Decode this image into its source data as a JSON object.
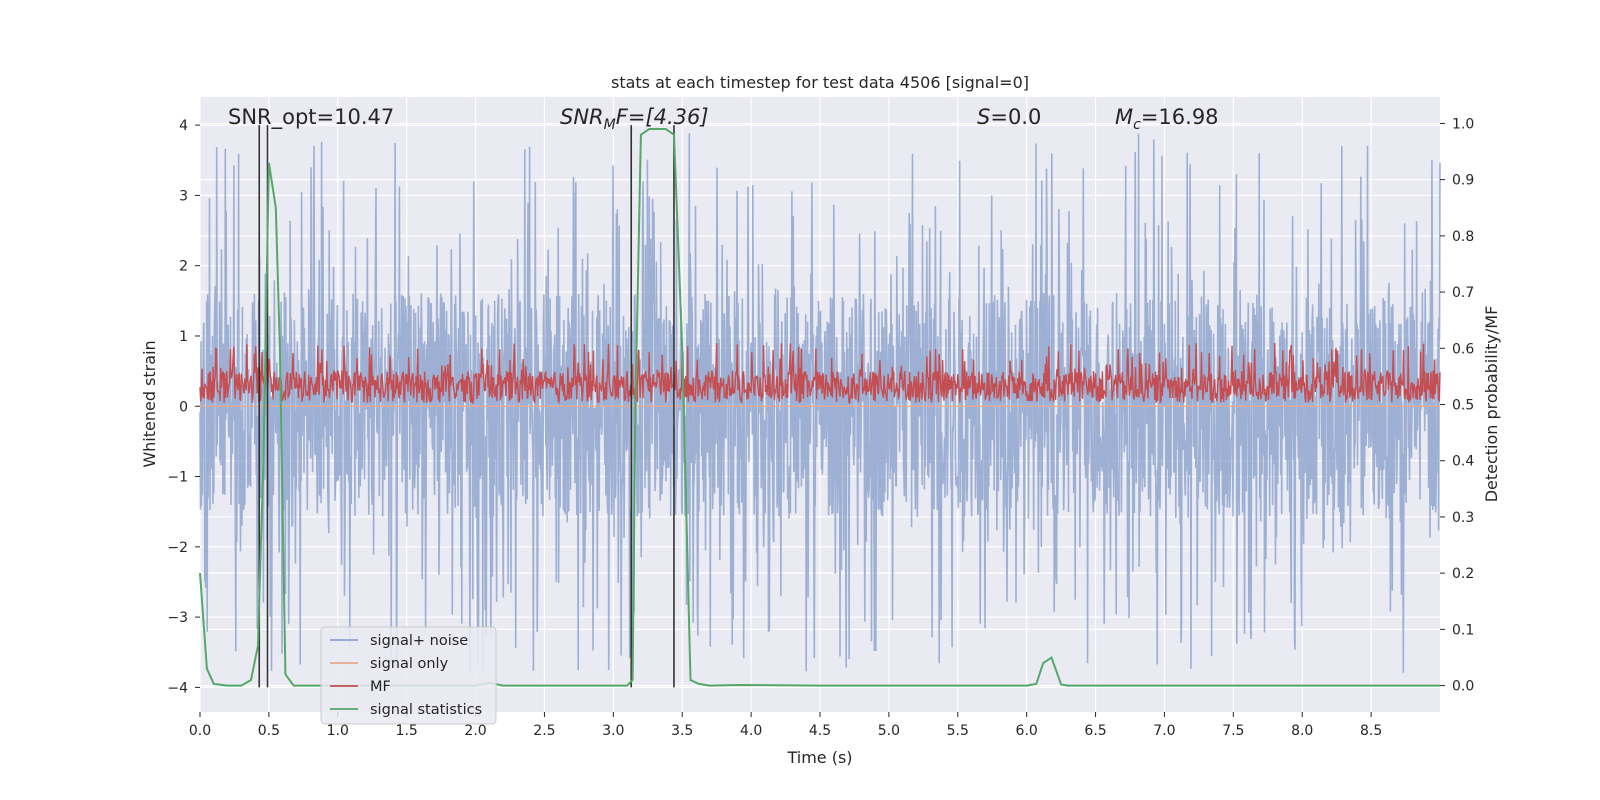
{
  "chart_data": {
    "type": "line",
    "title": "stats at each timestep for test data 4506 [signal=0]",
    "xlabel": "Time (s)",
    "ylabel": "Whitened strain",
    "ylabel_right": "Detection probability/MF",
    "xlim": [
      0.0,
      9.0
    ],
    "ylim": [
      -4.35,
      4.4
    ],
    "ylim_right": [
      -0.047,
      1.047
    ],
    "xticks": [
      "0.0",
      "0.5",
      "1.0",
      "1.5",
      "2.0",
      "2.5",
      "3.0",
      "3.5",
      "4.0",
      "4.5",
      "5.0",
      "5.5",
      "6.0",
      "6.5",
      "7.0",
      "7.5",
      "8.0",
      "8.5"
    ],
    "xtick_values": [
      0.0,
      0.5,
      1.0,
      1.5,
      2.0,
      2.5,
      3.0,
      3.5,
      4.0,
      4.5,
      5.0,
      5.5,
      6.0,
      6.5,
      7.0,
      7.5,
      8.0,
      8.5
    ],
    "yticks": [
      "−4",
      "−3",
      "−2",
      "−1",
      "0",
      "1",
      "2",
      "3",
      "4"
    ],
    "ytick_values": [
      -4,
      -3,
      -2,
      -1,
      0,
      1,
      2,
      3,
      4
    ],
    "yticks_right": [
      "0.0",
      "0.1",
      "0.2",
      "0.3",
      "0.4",
      "0.5",
      "0.6",
      "0.7",
      "0.8",
      "0.9",
      "1.0"
    ],
    "ytick_values_right": [
      0.0,
      0.1,
      0.2,
      0.3,
      0.4,
      0.5,
      0.6,
      0.7,
      0.8,
      0.9,
      1.0
    ],
    "grid": true,
    "legend_position": "lower-left",
    "annotations": {
      "snr_opt": "SNR_opt=10.47",
      "snr_mf_main": "SNR",
      "snr_mf_sub": "M",
      "snr_mf_tail": "F=[4.36]",
      "s_main": "S",
      "s_tail": "=0.0",
      "mc_main": "M",
      "mc_sub": "c",
      "mc_tail": "=16.98"
    },
    "series": [
      {
        "name": "signal+ noise",
        "color": "#8fa6cf",
        "kind": "noise",
        "amplitude_band": [
          -1.6,
          1.6
        ],
        "peak_range": [
          -3.8,
          3.9
        ]
      },
      {
        "name": "signal only",
        "color": "#e8a98f",
        "kind": "flat",
        "values": [
          0.0
        ]
      },
      {
        "name": "MF",
        "color": "#c44e52",
        "kind": "mf",
        "amplitude_range": [
          0.05,
          0.9
        ]
      },
      {
        "name": "signal statistics",
        "color": "#55a868",
        "axis": "right",
        "x": [
          0.0,
          0.05,
          0.1,
          0.2,
          0.3,
          0.37,
          0.42,
          0.46,
          0.5,
          0.55,
          0.58,
          0.62,
          0.68,
          0.8,
          1.0,
          1.5,
          2.0,
          2.1,
          2.2,
          2.5,
          3.0,
          3.1,
          3.14,
          3.16,
          3.2,
          3.26,
          3.32,
          3.38,
          3.44,
          3.5,
          3.56,
          3.62,
          3.7,
          3.9,
          4.5,
          5.0,
          5.5,
          6.0,
          6.07,
          6.12,
          6.18,
          6.25,
          6.3,
          7.0,
          8.0,
          8.5,
          9.0
        ],
        "values": [
          0.2,
          0.03,
          0.003,
          0.0,
          0.0,
          0.01,
          0.07,
          0.4,
          0.93,
          0.85,
          0.6,
          0.02,
          0.0,
          0.0,
          0.0,
          0.0,
          0.0,
          0.005,
          0.0,
          0.0,
          0.0,
          0.0,
          0.01,
          0.5,
          0.98,
          0.99,
          0.99,
          0.99,
          0.98,
          0.6,
          0.01,
          0.003,
          0.0,
          0.001,
          0.0,
          0.0,
          0.0,
          0.0,
          0.003,
          0.04,
          0.05,
          0.002,
          0.0,
          0.0,
          0.0,
          0.0,
          0.0
        ]
      }
    ],
    "vertical_markers": [
      {
        "x": 0.43,
        "color": "#333333"
      },
      {
        "x": 0.49,
        "color": "#333333"
      },
      {
        "x": 3.13,
        "color": "#333333"
      },
      {
        "x": 3.44,
        "color": "#333333"
      }
    ]
  }
}
